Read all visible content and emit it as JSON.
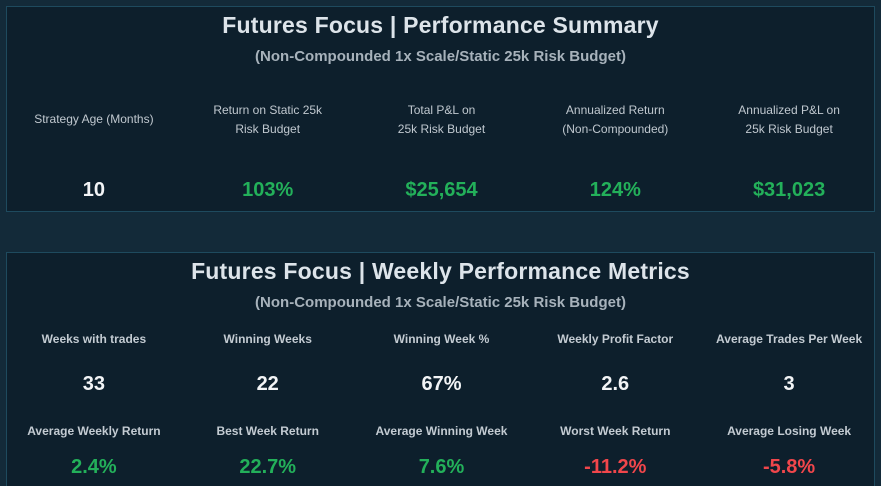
{
  "summary": {
    "title": "Futures Focus | Performance Summary",
    "subtitle": "(Non-Compounded 1x Scale/Static 25k Risk Budget)",
    "metrics": [
      {
        "label": "Strategy Age (Months)",
        "value": "10",
        "tone": "white"
      },
      {
        "label": "Return on Static 25k\nRisk Budget",
        "value": "103%",
        "tone": "green"
      },
      {
        "label": "Total P&L on\n25k  Risk Budget",
        "value": "$25,654",
        "tone": "green"
      },
      {
        "label": "Annualized Return\n(Non-Compounded)",
        "value": "124%",
        "tone": "green"
      },
      {
        "label": "Annualized P&L on\n25k Risk Budget",
        "value": "$31,023",
        "tone": "green"
      }
    ]
  },
  "weekly": {
    "title": "Futures Focus | Weekly Performance Metrics",
    "subtitle": "(Non-Compounded 1x Scale/Static 25k Risk Budget)",
    "row1": [
      {
        "label": "Weeks with trades",
        "value": "33",
        "tone": "white"
      },
      {
        "label": "Winning Weeks",
        "value": "22",
        "tone": "white"
      },
      {
        "label": "Winning Week %",
        "value": "67%",
        "tone": "white"
      },
      {
        "label": "Weekly Profit Factor",
        "value": "2.6",
        "tone": "white"
      },
      {
        "label": "Average Trades Per Week",
        "value": "3",
        "tone": "white"
      }
    ],
    "row2": [
      {
        "label": "Average Weekly Return",
        "value": "2.4%",
        "tone": "green"
      },
      {
        "label": "Best Week Return",
        "value": "22.7%",
        "tone": "green"
      },
      {
        "label": "Average Winning Week",
        "value": "7.6%",
        "tone": "green"
      },
      {
        "label": "Worst Week Return",
        "value": "-11.2%",
        "tone": "red"
      },
      {
        "label": "Average Losing Week",
        "value": "-5.8%",
        "tone": "red"
      }
    ]
  },
  "colors": {
    "positive": "#23b05a",
    "negative": "#f0464b",
    "neutral": "#f2f4f6",
    "panel_bg": "#0d1f2c",
    "page_bg": "#132a39"
  }
}
